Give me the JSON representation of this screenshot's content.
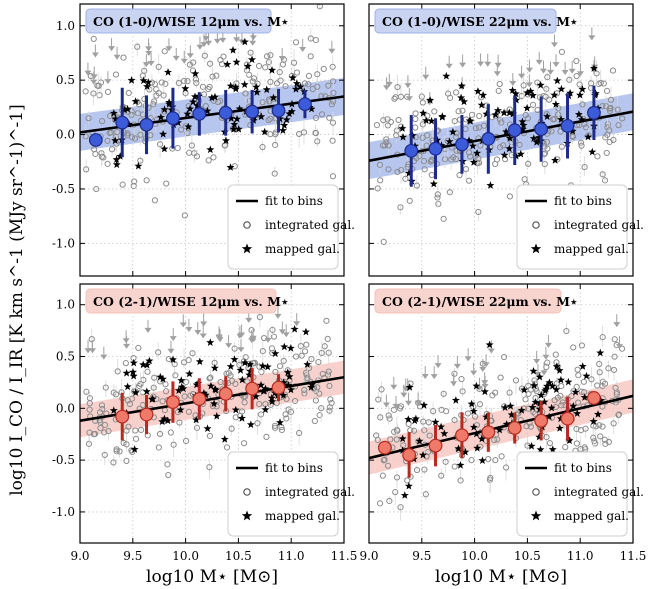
{
  "figure": {
    "xlabel": "log10 M⋆ [M⊙]",
    "ylabel": "log10 I_CO / I_IR [K km s^-1 (MJy sr^-1)^-1]",
    "legend": {
      "fit": "fit to bins",
      "integrated": "integrated gal.",
      "mapped": "mapped gal."
    },
    "colors": {
      "blue_marker": "#3b5bd9",
      "blue_band": "#9fb3ea",
      "blue_errbar": "#1e2a8a",
      "blue_title_bg": "#c9d3f2",
      "red_marker": "#f07a6a",
      "red_band": "#f7c2bb",
      "red_errbar": "#b62a20",
      "red_title_bg": "#f8d4cf"
    }
  },
  "chart_data": [
    {
      "type": "scatter",
      "title": "CO (1-0)/WISE 12μm vs. M⋆",
      "theme": "blue",
      "xlim": [
        9.0,
        11.5
      ],
      "ylim": [
        -1.3,
        1.2
      ],
      "xticks": [
        9.0,
        9.5,
        10.0,
        10.5,
        11.0,
        11.5
      ],
      "yticks": [
        -1.0,
        -0.5,
        0.0,
        0.5,
        1.0
      ],
      "fit_line": {
        "x": [
          9.0,
          11.5
        ],
        "y": [
          0.02,
          0.35
        ]
      },
      "fit_band_halfwidth": 0.17,
      "bins": {
        "x": [
          9.15,
          9.4,
          9.63,
          9.88,
          10.13,
          10.38,
          10.63,
          10.88,
          11.13
        ],
        "y": [
          -0.05,
          0.11,
          0.09,
          0.15,
          0.19,
          0.2,
          0.21,
          0.22,
          0.28
        ],
        "err": [
          0.0,
          0.32,
          0.27,
          0.28,
          0.2,
          0.21,
          0.2,
          0.2,
          0.13
        ]
      }
    },
    {
      "type": "scatter",
      "title": "CO (1-0)/WISE 22μm vs. M⋆",
      "theme": "blue",
      "xlim": [
        9.0,
        11.5
      ],
      "ylim": [
        -1.3,
        1.2
      ],
      "xticks": [
        9.0,
        9.5,
        10.0,
        10.5,
        11.0,
        11.5
      ],
      "yticks": [
        -1.0,
        -0.5,
        0.0,
        0.5,
        1.0
      ],
      "fit_line": {
        "x": [
          9.0,
          11.5
        ],
        "y": [
          -0.24,
          0.21
        ]
      },
      "fit_band_halfwidth": 0.17,
      "bins": {
        "x": [
          9.4,
          9.63,
          9.88,
          10.13,
          10.38,
          10.63,
          10.88,
          11.13
        ],
        "y": [
          -0.15,
          -0.13,
          -0.09,
          -0.04,
          0.04,
          0.05,
          0.08,
          0.2
        ],
        "err": [
          0.33,
          0.28,
          0.27,
          0.32,
          0.32,
          0.3,
          0.3,
          0.25
        ]
      }
    },
    {
      "type": "scatter",
      "title": "CO (2-1)/WISE 12μm vs. M⋆",
      "theme": "red",
      "xlim": [
        9.0,
        11.5
      ],
      "ylim": [
        -1.3,
        1.2
      ],
      "xticks": [
        9.0,
        9.5,
        10.0,
        10.5,
        11.0,
        11.5
      ],
      "yticks": [
        -1.0,
        -0.5,
        0.0,
        0.5,
        1.0
      ],
      "fit_line": {
        "x": [
          9.0,
          11.5
        ],
        "y": [
          -0.12,
          0.3
        ]
      },
      "fit_band_halfwidth": 0.16,
      "bins": {
        "x": [
          9.4,
          9.63,
          9.88,
          10.13,
          10.38,
          10.63,
          10.88
        ],
        "y": [
          -0.08,
          -0.06,
          0.06,
          0.09,
          0.14,
          0.19,
          0.2
        ],
        "err": [
          0.23,
          0.19,
          0.2,
          0.2,
          0.17,
          0.2,
          0.13
        ]
      }
    },
    {
      "type": "scatter",
      "title": "CO (2-1)/WISE 22μm vs. M⋆",
      "theme": "red",
      "xlim": [
        9.0,
        11.5
      ],
      "ylim": [
        -1.3,
        1.2
      ],
      "xticks": [
        9.0,
        9.5,
        10.0,
        10.5,
        11.0,
        11.5
      ],
      "yticks": [
        -1.0,
        -0.5,
        0.0,
        0.5,
        1.0
      ],
      "fit_line": {
        "x": [
          9.0,
          11.5
        ],
        "y": [
          -0.48,
          0.12
        ]
      },
      "fit_band_halfwidth": 0.16,
      "bins": {
        "x": [
          9.15,
          9.38,
          9.63,
          9.88,
          10.13,
          10.38,
          10.63,
          10.88,
          11.13
        ],
        "y": [
          -0.38,
          -0.45,
          -0.36,
          -0.26,
          -0.23,
          -0.19,
          -0.12,
          -0.1,
          0.1
        ],
        "err": [
          0.0,
          0.22,
          0.2,
          0.22,
          0.19,
          0.15,
          0.19,
          0.21,
          0.0
        ]
      }
    }
  ]
}
